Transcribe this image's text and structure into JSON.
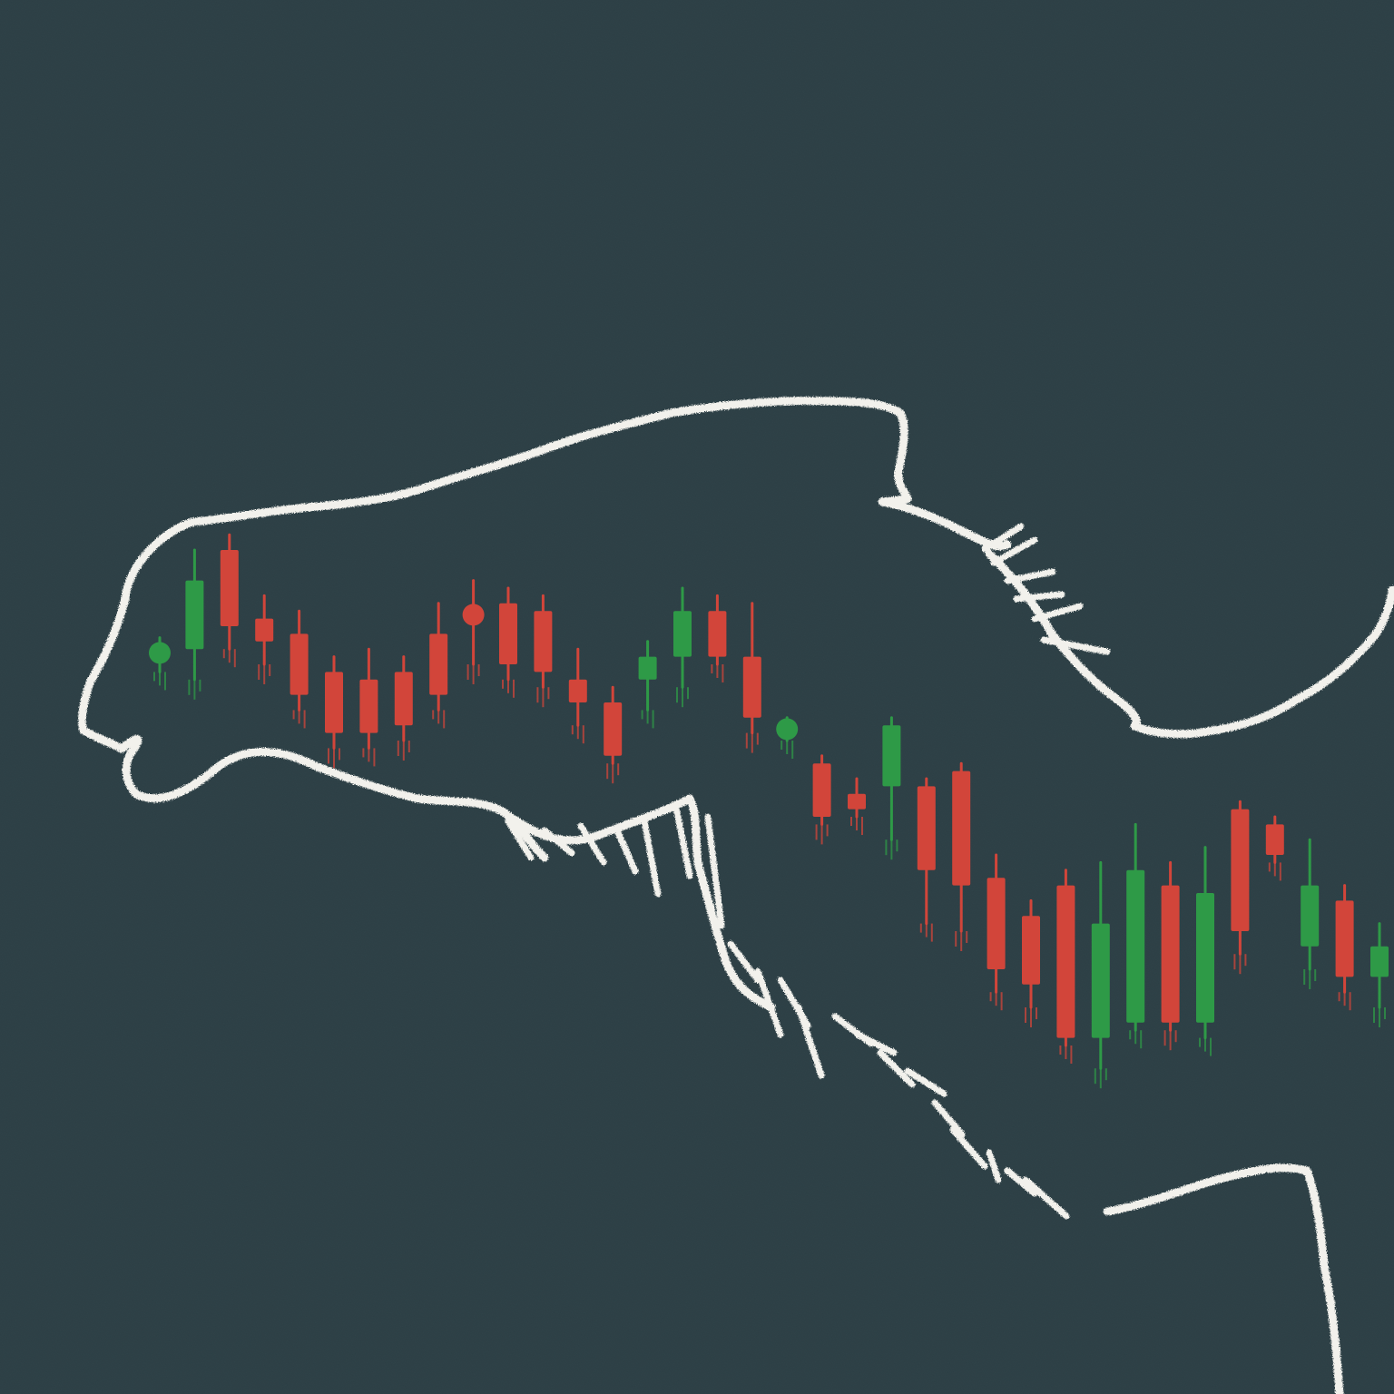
{
  "artwork": {
    "description_visible_text": "",
    "colors": {
      "background": "#2a3d43",
      "chalk_outline": "#f2f1ec",
      "bearish_candle": "#d2453a",
      "bullish_candle": "#2e9a47"
    }
  },
  "candles": [
    {
      "dir": "up",
      "open": 0.42,
      "close": 0.44,
      "high": 0.47,
      "low": 0.38,
      "style": "dot"
    },
    {
      "dir": "up",
      "open": 0.44,
      "close": 0.62,
      "high": 0.7,
      "low": 0.36
    },
    {
      "dir": "down",
      "open": 0.7,
      "close": 0.5,
      "high": 0.74,
      "low": 0.44
    },
    {
      "dir": "down",
      "open": 0.52,
      "close": 0.46,
      "high": 0.58,
      "low": 0.4
    },
    {
      "dir": "down",
      "open": 0.48,
      "close": 0.32,
      "high": 0.54,
      "low": 0.28
    },
    {
      "dir": "down",
      "open": 0.38,
      "close": 0.22,
      "high": 0.42,
      "low": 0.18
    },
    {
      "dir": "down",
      "open": 0.36,
      "close": 0.22,
      "high": 0.44,
      "low": 0.18
    },
    {
      "dir": "down",
      "open": 0.38,
      "close": 0.24,
      "high": 0.42,
      "low": 0.2
    },
    {
      "dir": "down",
      "open": 0.48,
      "close": 0.32,
      "high": 0.56,
      "low": 0.28
    },
    {
      "dir": "down",
      "open": 0.56,
      "close": 0.5,
      "high": 0.62,
      "low": 0.4,
      "style": "dot"
    },
    {
      "dir": "down",
      "open": 0.56,
      "close": 0.4,
      "high": 0.6,
      "low": 0.36
    },
    {
      "dir": "down",
      "open": 0.54,
      "close": 0.38,
      "high": 0.58,
      "low": 0.34
    },
    {
      "dir": "down",
      "open": 0.36,
      "close": 0.3,
      "high": 0.44,
      "low": 0.24
    },
    {
      "dir": "down",
      "open": 0.3,
      "close": 0.16,
      "high": 0.34,
      "low": 0.14
    },
    {
      "dir": "up",
      "open": 0.36,
      "close": 0.42,
      "high": 0.46,
      "low": 0.28
    },
    {
      "dir": "up",
      "open": 0.42,
      "close": 0.54,
      "high": 0.6,
      "low": 0.34
    },
    {
      "dir": "down",
      "open": 0.54,
      "close": 0.42,
      "high": 0.58,
      "low": 0.4
    },
    {
      "dir": "down",
      "open": 0.42,
      "close": 0.26,
      "high": 0.56,
      "low": 0.22
    },
    {
      "dir": "up",
      "open": 0.22,
      "close": 0.24,
      "high": 0.26,
      "low": 0.2,
      "style": "dot"
    },
    {
      "dir": "down",
      "open": 0.14,
      "close": 0.0,
      "high": 0.16,
      "low": -0.02
    },
    {
      "dir": "down",
      "open": 0.06,
      "close": 0.02,
      "high": 0.1,
      "low": 0.0
    },
    {
      "dir": "up",
      "open": 0.08,
      "close": 0.24,
      "high": 0.26,
      "low": -0.06
    },
    {
      "dir": "down",
      "open": 0.08,
      "close": -0.14,
      "high": 0.1,
      "low": -0.28
    },
    {
      "dir": "down",
      "open": 0.12,
      "close": -0.18,
      "high": 0.14,
      "low": -0.3
    },
    {
      "dir": "down",
      "open": -0.16,
      "close": -0.4,
      "high": -0.1,
      "low": -0.46
    },
    {
      "dir": "down",
      "open": -0.26,
      "close": -0.44,
      "high": -0.22,
      "low": -0.5
    },
    {
      "dir": "down",
      "open": -0.18,
      "close": -0.58,
      "high": -0.14,
      "low": -0.6
    },
    {
      "dir": "up",
      "open": -0.58,
      "close": -0.28,
      "high": -0.12,
      "low": -0.66
    },
    {
      "dir": "up",
      "open": -0.54,
      "close": -0.14,
      "high": -0.02,
      "low": -0.56
    },
    {
      "dir": "down",
      "open": -0.18,
      "close": -0.54,
      "high": -0.12,
      "low": -0.56
    },
    {
      "dir": "up",
      "open": -0.54,
      "close": -0.2,
      "high": -0.08,
      "low": -0.58
    },
    {
      "dir": "down",
      "open": 0.02,
      "close": -0.3,
      "high": 0.04,
      "low": -0.36
    },
    {
      "dir": "down",
      "open": -0.02,
      "close": -0.1,
      "high": 0.0,
      "low": -0.12
    },
    {
      "dir": "up",
      "open": -0.34,
      "close": -0.18,
      "high": -0.06,
      "low": -0.4
    },
    {
      "dir": "down",
      "open": -0.22,
      "close": -0.42,
      "high": -0.18,
      "low": -0.46
    },
    {
      "dir": "up",
      "open": -0.42,
      "close": -0.34,
      "high": -0.28,
      "low": -0.5
    }
  ]
}
